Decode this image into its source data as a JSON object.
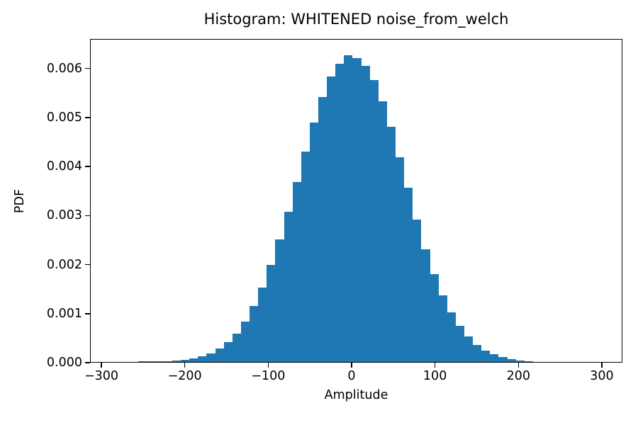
{
  "chart_data": {
    "type": "bar",
    "subtype": "histogram-density",
    "title": "Histogram: WHITENED noise_from_welch",
    "xlabel": "Amplitude",
    "ylabel": "PDF",
    "bar_color": "#1f77b4",
    "axis_color": "#000000",
    "background_color": "#ffffff",
    "grid": false,
    "legend": false,
    "xlim": [
      -313.6,
      324.7
    ],
    "ylim": [
      0,
      0.0066
    ],
    "x_ticks": {
      "values": [
        -300,
        -200,
        -100,
        0,
        100,
        200,
        300
      ],
      "labels": [
        "−300",
        "−200",
        "−100",
        "0",
        "100",
        "200",
        "300"
      ]
    },
    "y_ticks": {
      "values": [
        0,
        0.001,
        0.002,
        0.003,
        0.004,
        0.005,
        0.006
      ],
      "labels": [
        "0.000",
        "0.001",
        "0.002",
        "0.003",
        "0.004",
        "0.005",
        "0.006"
      ]
    },
    "bins": {
      "start": -255.8,
      "width": 10.3,
      "count": 46
    },
    "densities": [
      8e-06,
      1e-05,
      1.3e-05,
      1.8e-05,
      2.6e-05,
      4.6e-05,
      7.2e-05,
      0.000118,
      0.00018,
      0.000272,
      0.0004,
      0.000578,
      0.00083,
      0.001148,
      0.001522,
      0.001978,
      0.002496,
      0.003058,
      0.003662,
      0.004294,
      0.004878,
      0.005402,
      0.005818,
      0.006074,
      0.006248,
      0.006202,
      0.006044,
      0.005742,
      0.00531,
      0.004788,
      0.00418,
      0.003556,
      0.002902,
      0.002296,
      0.001792,
      0.001358,
      0.001014,
      0.000738,
      0.00052,
      0.000352,
      0.000234,
      0.000152,
      9.6e-05,
      6e-05,
      3.5e-05,
      2e-05
    ],
    "peak_density": 0.006248,
    "distribution_note": "approximately Gaussian, mean 0, sigma ~64"
  }
}
